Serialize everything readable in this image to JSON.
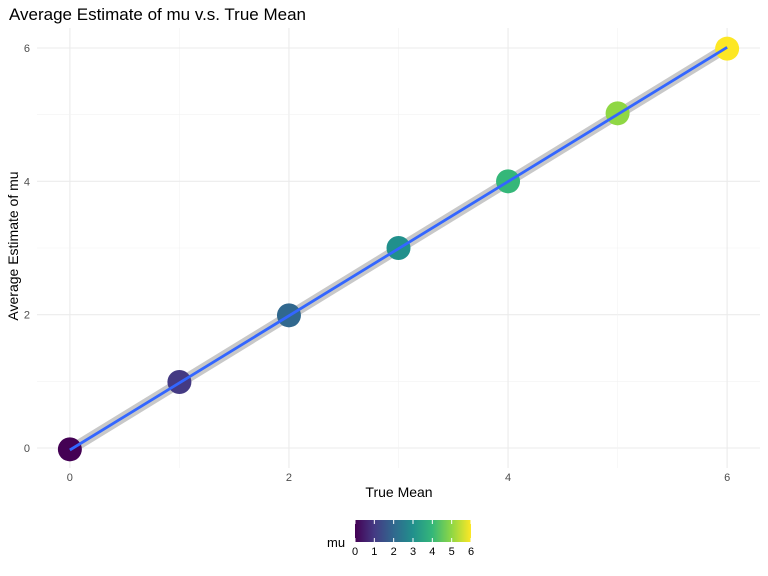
{
  "chart_data": {
    "type": "scatter",
    "title": "Average Estimate of mu v.s. True Mean",
    "xlabel": "True Mean",
    "ylabel": "Average Estimate of mu",
    "xlim": [
      -0.3,
      6.3
    ],
    "ylim": [
      -0.3,
      6.3
    ],
    "x_ticks": [
      0,
      2,
      4,
      6
    ],
    "y_ticks": [
      0,
      2,
      4,
      6
    ],
    "grid": true,
    "points": [
      {
        "x": 0,
        "y": -0.02,
        "mu": 0
      },
      {
        "x": 1,
        "y": 0.99,
        "mu": 1
      },
      {
        "x": 2,
        "y": 1.99,
        "mu": 2
      },
      {
        "x": 3,
        "y": 3.0,
        "mu": 3
      },
      {
        "x": 4,
        "y": 4.0,
        "mu": 4
      },
      {
        "x": 5,
        "y": 5.02,
        "mu": 5
      },
      {
        "x": 6,
        "y": 5.99,
        "mu": 6
      }
    ],
    "fit_line": {
      "x0": 0,
      "y0": -0.03,
      "x1": 6,
      "y1": 6.01,
      "color": "#3366ff",
      "ribbon_color": "#bebebe"
    },
    "legend": {
      "title": "mu",
      "placement": "bottom",
      "ticks": [
        0,
        1,
        2,
        3,
        4,
        5,
        6
      ],
      "colors": [
        "#440154",
        "#443a83",
        "#31688e",
        "#21908c",
        "#35b779",
        "#8fd744",
        "#fde725"
      ]
    }
  }
}
